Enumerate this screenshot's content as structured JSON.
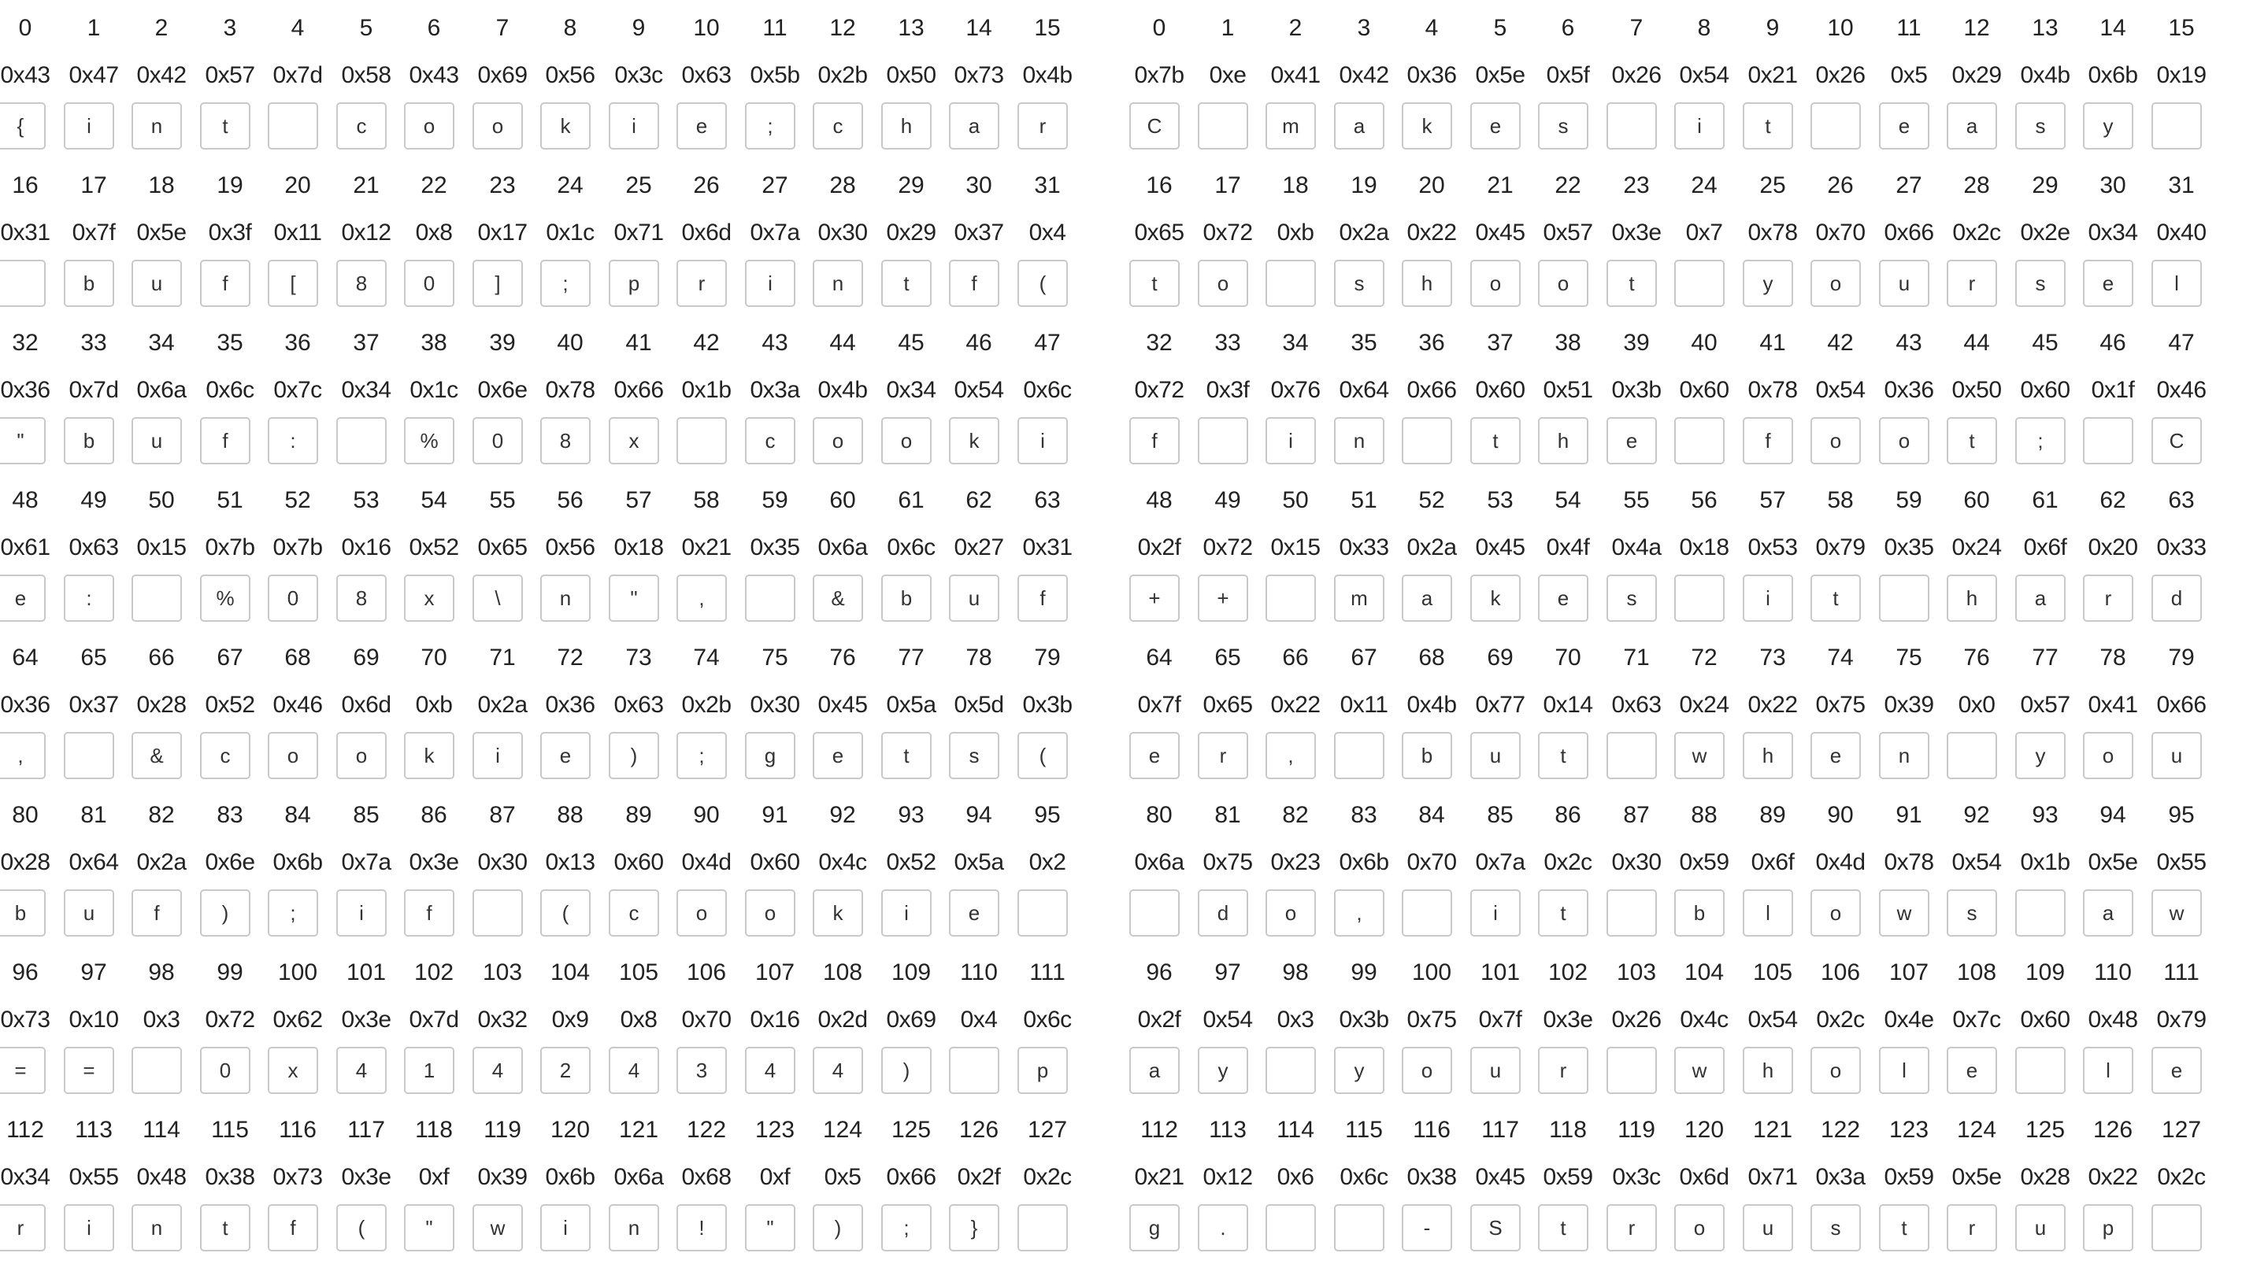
{
  "panels": [
    {
      "id": "left",
      "rows": [
        {
          "idx": [
            "0",
            "1",
            "2",
            "3",
            "4",
            "5",
            "6",
            "7",
            "8",
            "9",
            "10",
            "11",
            "12",
            "13",
            "14",
            "15"
          ],
          "hex": [
            "0x43",
            "0x47",
            "0x42",
            "0x57",
            "0x7d",
            "0x58",
            "0x43",
            "0x69",
            "0x56",
            "0x3c",
            "0x63",
            "0x5b",
            "0x2b",
            "0x50",
            "0x73",
            "0x4b"
          ],
          "chars": [
            "{",
            "i",
            "n",
            "t",
            "",
            "c",
            "o",
            "o",
            "k",
            "i",
            "e",
            ";",
            "c",
            "h",
            "a",
            "r"
          ]
        },
        {
          "idx": [
            "16",
            "17",
            "18",
            "19",
            "20",
            "21",
            "22",
            "23",
            "24",
            "25",
            "26",
            "27",
            "28",
            "29",
            "30",
            "31"
          ],
          "hex": [
            "0x31",
            "0x7f",
            "0x5e",
            "0x3f",
            "0x11",
            "0x12",
            "0x8",
            "0x17",
            "0x1c",
            "0x71",
            "0x6d",
            "0x7a",
            "0x30",
            "0x29",
            "0x37",
            "0x4"
          ],
          "chars": [
            "",
            "b",
            "u",
            "f",
            "[",
            "8",
            "0",
            "]",
            ";",
            "p",
            "r",
            "i",
            "n",
            "t",
            "f",
            "("
          ]
        },
        {
          "idx": [
            "32",
            "33",
            "34",
            "35",
            "36",
            "37",
            "38",
            "39",
            "40",
            "41",
            "42",
            "43",
            "44",
            "45",
            "46",
            "47"
          ],
          "hex": [
            "0x36",
            "0x7d",
            "0x6a",
            "0x6c",
            "0x7c",
            "0x34",
            "0x1c",
            "0x6e",
            "0x78",
            "0x66",
            "0x1b",
            "0x3a",
            "0x4b",
            "0x34",
            "0x54",
            "0x6c"
          ],
          "chars": [
            "\"",
            "b",
            "u",
            "f",
            ":",
            "",
            "%",
            "0",
            "8",
            "x",
            "",
            "c",
            "o",
            "o",
            "k",
            "i"
          ]
        },
        {
          "idx": [
            "48",
            "49",
            "50",
            "51",
            "52",
            "53",
            "54",
            "55",
            "56",
            "57",
            "58",
            "59",
            "60",
            "61",
            "62",
            "63"
          ],
          "hex": [
            "0x61",
            "0x63",
            "0x15",
            "0x7b",
            "0x7b",
            "0x16",
            "0x52",
            "0x65",
            "0x56",
            "0x18",
            "0x21",
            "0x35",
            "0x6a",
            "0x6c",
            "0x27",
            "0x31"
          ],
          "chars": [
            "e",
            ":",
            "",
            "%",
            "0",
            "8",
            "x",
            "\\",
            "n",
            "\"",
            ",",
            "",
            "&",
            "b",
            "u",
            "f"
          ]
        },
        {
          "idx": [
            "64",
            "65",
            "66",
            "67",
            "68",
            "69",
            "70",
            "71",
            "72",
            "73",
            "74",
            "75",
            "76",
            "77",
            "78",
            "79"
          ],
          "hex": [
            "0x36",
            "0x37",
            "0x28",
            "0x52",
            "0x46",
            "0x6d",
            "0xb",
            "0x2a",
            "0x36",
            "0x63",
            "0x2b",
            "0x30",
            "0x45",
            "0x5a",
            "0x5d",
            "0x3b"
          ],
          "chars": [
            ",",
            "",
            "&",
            "c",
            "o",
            "o",
            "k",
            "i",
            "e",
            ")",
            ";",
            "g",
            "e",
            "t",
            "s",
            "("
          ]
        },
        {
          "idx": [
            "80",
            "81",
            "82",
            "83",
            "84",
            "85",
            "86",
            "87",
            "88",
            "89",
            "90",
            "91",
            "92",
            "93",
            "94",
            "95"
          ],
          "hex": [
            "0x28",
            "0x64",
            "0x2a",
            "0x6e",
            "0x6b",
            "0x7a",
            "0x3e",
            "0x30",
            "0x13",
            "0x60",
            "0x4d",
            "0x60",
            "0x4c",
            "0x52",
            "0x5a",
            "0x2"
          ],
          "chars": [
            "b",
            "u",
            "f",
            ")",
            ";",
            "i",
            "f",
            "",
            "(",
            "c",
            "o",
            "o",
            "k",
            "i",
            "e",
            ""
          ]
        },
        {
          "idx": [
            "96",
            "97",
            "98",
            "99",
            "100",
            "101",
            "102",
            "103",
            "104",
            "105",
            "106",
            "107",
            "108",
            "109",
            "110",
            "111"
          ],
          "hex": [
            "0x73",
            "0x10",
            "0x3",
            "0x72",
            "0x62",
            "0x3e",
            "0x7d",
            "0x32",
            "0x9",
            "0x8",
            "0x70",
            "0x16",
            "0x2d",
            "0x69",
            "0x4",
            "0x6c"
          ],
          "chars": [
            "=",
            "=",
            "",
            "0",
            "x",
            "4",
            "1",
            "4",
            "2",
            "4",
            "3",
            "4",
            "4",
            ")",
            "",
            "p"
          ]
        },
        {
          "idx": [
            "112",
            "113",
            "114",
            "115",
            "116",
            "117",
            "118",
            "119",
            "120",
            "121",
            "122",
            "123",
            "124",
            "125",
            "126",
            "127"
          ],
          "hex": [
            "0x34",
            "0x55",
            "0x48",
            "0x38",
            "0x73",
            "0x3e",
            "0xf",
            "0x39",
            "0x6b",
            "0x6a",
            "0x68",
            "0xf",
            "0x5",
            "0x66",
            "0x2f",
            "0x2c"
          ],
          "chars": [
            "r",
            "i",
            "n",
            "t",
            "f",
            "(",
            "\"",
            "w",
            "i",
            "n",
            "!",
            "\"",
            ")",
            ";",
            "}",
            ""
          ]
        }
      ]
    },
    {
      "id": "right",
      "rows": [
        {
          "idx": [
            "0",
            "1",
            "2",
            "3",
            "4",
            "5",
            "6",
            "7",
            "8",
            "9",
            "10",
            "11",
            "12",
            "13",
            "14",
            "15"
          ],
          "hex": [
            "0x7b",
            "0xe",
            "0x41",
            "0x42",
            "0x36",
            "0x5e",
            "0x5f",
            "0x26",
            "0x54",
            "0x21",
            "0x26",
            "0x5",
            "0x29",
            "0x4b",
            "0x6b",
            "0x19"
          ],
          "chars": [
            "C",
            "",
            "m",
            "a",
            "k",
            "e",
            "s",
            "",
            "i",
            "t",
            "",
            "e",
            "a",
            "s",
            "y",
            ""
          ]
        },
        {
          "idx": [
            "16",
            "17",
            "18",
            "19",
            "20",
            "21",
            "22",
            "23",
            "24",
            "25",
            "26",
            "27",
            "28",
            "29",
            "30",
            "31"
          ],
          "hex": [
            "0x65",
            "0x72",
            "0xb",
            "0x2a",
            "0x22",
            "0x45",
            "0x57",
            "0x3e",
            "0x7",
            "0x78",
            "0x70",
            "0x66",
            "0x2c",
            "0x2e",
            "0x34",
            "0x40"
          ],
          "chars": [
            "t",
            "o",
            "",
            "s",
            "h",
            "o",
            "o",
            "t",
            "",
            "y",
            "o",
            "u",
            "r",
            "s",
            "e",
            "l"
          ]
        },
        {
          "idx": [
            "32",
            "33",
            "34",
            "35",
            "36",
            "37",
            "38",
            "39",
            "40",
            "41",
            "42",
            "43",
            "44",
            "45",
            "46",
            "47"
          ],
          "hex": [
            "0x72",
            "0x3f",
            "0x76",
            "0x64",
            "0x66",
            "0x60",
            "0x51",
            "0x3b",
            "0x60",
            "0x78",
            "0x54",
            "0x36",
            "0x50",
            "0x60",
            "0x1f",
            "0x46"
          ],
          "chars": [
            "f",
            "",
            "i",
            "n",
            "",
            "t",
            "h",
            "e",
            "",
            "f",
            "o",
            "o",
            "t",
            ";",
            "",
            "C"
          ]
        },
        {
          "idx": [
            "48",
            "49",
            "50",
            "51",
            "52",
            "53",
            "54",
            "55",
            "56",
            "57",
            "58",
            "59",
            "60",
            "61",
            "62",
            "63"
          ],
          "hex": [
            "0x2f",
            "0x72",
            "0x15",
            "0x33",
            "0x2a",
            "0x45",
            "0x4f",
            "0x4a",
            "0x18",
            "0x53",
            "0x79",
            "0x35",
            "0x24",
            "0x6f",
            "0x20",
            "0x33"
          ],
          "chars": [
            "+",
            "+",
            "",
            "m",
            "a",
            "k",
            "e",
            "s",
            "",
            "i",
            "t",
            "",
            "h",
            "a",
            "r",
            "d"
          ]
        },
        {
          "idx": [
            "64",
            "65",
            "66",
            "67",
            "68",
            "69",
            "70",
            "71",
            "72",
            "73",
            "74",
            "75",
            "76",
            "77",
            "78",
            "79"
          ],
          "hex": [
            "0x7f",
            "0x65",
            "0x22",
            "0x11",
            "0x4b",
            "0x77",
            "0x14",
            "0x63",
            "0x24",
            "0x22",
            "0x75",
            "0x39",
            "0x0",
            "0x57",
            "0x41",
            "0x66"
          ],
          "chars": [
            "e",
            "r",
            ",",
            "",
            "b",
            "u",
            "t",
            "",
            "w",
            "h",
            "e",
            "n",
            "",
            "y",
            "o",
            "u"
          ]
        },
        {
          "idx": [
            "80",
            "81",
            "82",
            "83",
            "84",
            "85",
            "86",
            "87",
            "88",
            "89",
            "90",
            "91",
            "92",
            "93",
            "94",
            "95"
          ],
          "hex": [
            "0x6a",
            "0x75",
            "0x23",
            "0x6b",
            "0x70",
            "0x7a",
            "0x2c",
            "0x30",
            "0x59",
            "0x6f",
            "0x4d",
            "0x78",
            "0x54",
            "0x1b",
            "0x5e",
            "0x55"
          ],
          "chars": [
            "",
            "d",
            "o",
            ",",
            "",
            "i",
            "t",
            "",
            "b",
            "l",
            "o",
            "w",
            "s",
            "",
            "a",
            "w"
          ]
        },
        {
          "idx": [
            "96",
            "97",
            "98",
            "99",
            "100",
            "101",
            "102",
            "103",
            "104",
            "105",
            "106",
            "107",
            "108",
            "109",
            "110",
            "111"
          ],
          "hex": [
            "0x2f",
            "0x54",
            "0x3",
            "0x3b",
            "0x75",
            "0x7f",
            "0x3e",
            "0x26",
            "0x4c",
            "0x54",
            "0x2c",
            "0x4e",
            "0x7c",
            "0x60",
            "0x48",
            "0x79"
          ],
          "chars": [
            "a",
            "y",
            "",
            "y",
            "o",
            "u",
            "r",
            "",
            "w",
            "h",
            "o",
            "l",
            "e",
            "",
            "l",
            "e"
          ]
        },
        {
          "idx": [
            "112",
            "113",
            "114",
            "115",
            "116",
            "117",
            "118",
            "119",
            "120",
            "121",
            "122",
            "123",
            "124",
            "125",
            "126",
            "127"
          ],
          "hex": [
            "0x21",
            "0x12",
            "0x6",
            "0x6c",
            "0x38",
            "0x45",
            "0x59",
            "0x3c",
            "0x6d",
            "0x71",
            "0x3a",
            "0x59",
            "0x5e",
            "0x28",
            "0x22",
            "0x2c"
          ],
          "chars": [
            "g",
            ".",
            "",
            "",
            "-",
            "S",
            "t",
            "r",
            "o",
            "u",
            "s",
            "t",
            "r",
            "u",
            "p",
            ""
          ]
        }
      ]
    }
  ]
}
